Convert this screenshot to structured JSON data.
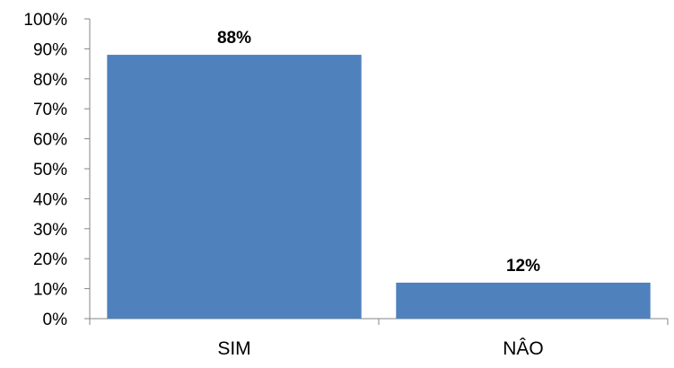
{
  "chart_data": {
    "type": "bar",
    "categories": [
      "SIM",
      "NÂO"
    ],
    "values": [
      88,
      12
    ],
    "data_labels": [
      "88%",
      "12%"
    ],
    "title": "",
    "xlabel": "",
    "ylabel": "",
    "ylim": [
      0,
      100
    ],
    "y_ticks": [
      0,
      10,
      20,
      30,
      40,
      50,
      60,
      70,
      80,
      90,
      100
    ],
    "y_tick_labels": [
      "0%",
      "10%",
      "20%",
      "30%",
      "40%",
      "50%",
      "60%",
      "70%",
      "80%",
      "90%",
      "100%"
    ],
    "grid": false,
    "legend": "none",
    "bar_color": "#4f81bd"
  }
}
